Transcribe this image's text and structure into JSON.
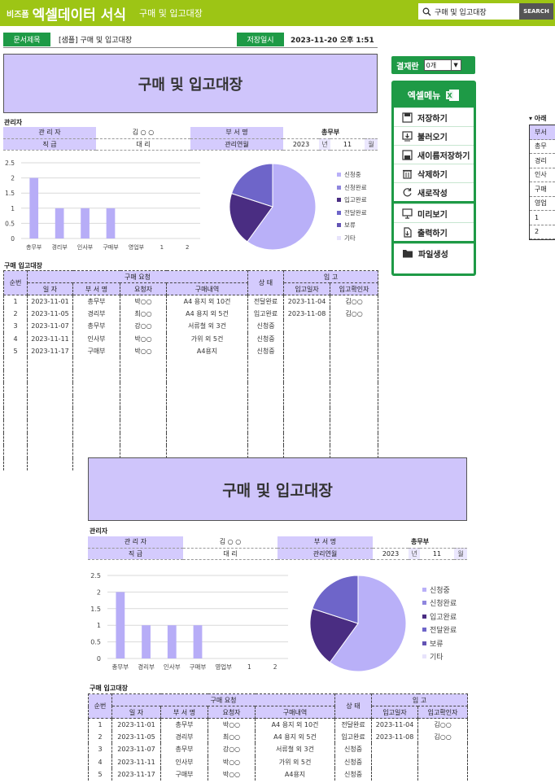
{
  "topbar": {
    "logo_small": "비즈폼",
    "logo_big": "엑셀데이터 서식",
    "subtitle": "구매 및 입고대장",
    "search_value": "구매 및 입고대장",
    "search_button": "SEARCH"
  },
  "docbar": {
    "doc_title_label": "문서제목",
    "doc_title_value": "[샘플] 구매 및 입고대장",
    "saved_label": "저장일시",
    "saved_value": "2023-11-20  오후 1:51"
  },
  "sheet": {
    "title": "구매 및 입고대장",
    "manager_section": "관리자",
    "info": {
      "manager_label": "관 리 자",
      "manager_value": "김 ○ ○",
      "dept_label": "부 서 명",
      "dept_value": "총무부",
      "rank_label": "직     급",
      "rank_value": "대     리",
      "period_label": "관리연월",
      "year": "2023",
      "year_unit": "년",
      "month": "11",
      "month_unit": "월"
    },
    "ledger_section": "구매 입고대장",
    "headers": {
      "no": "순번",
      "request": "구매 요청",
      "date": "일 자",
      "dept": "부 서 명",
      "requester": "요청자",
      "content": "구매내역",
      "status": "상 태",
      "receipt": "입 고",
      "receipt_date": "입고일자",
      "receipt_checker": "입고확인자"
    },
    "rows": [
      {
        "no": "1",
        "date": "2023-11-01",
        "dept": "총무부",
        "requester": "박○○",
        "content": "A4 용지 외 10건",
        "status": "전달완료",
        "rdate": "2023-11-04",
        "rchecker": "김○○"
      },
      {
        "no": "2",
        "date": "2023-11-05",
        "dept": "경리부",
        "requester": "최○○",
        "content": "A4 용지 외 5건",
        "status": "입고완료",
        "rdate": "2023-11-08",
        "rchecker": "김○○"
      },
      {
        "no": "3",
        "date": "2023-11-07",
        "dept": "총무부",
        "requester": "강○○",
        "content": "서류철 외 3건",
        "status": "신청중",
        "rdate": "",
        "rchecker": ""
      },
      {
        "no": "4",
        "date": "2023-11-11",
        "dept": "인사부",
        "requester": "박○○",
        "content": "가위 외 5건",
        "status": "신청중",
        "rdate": "",
        "rchecker": ""
      },
      {
        "no": "5",
        "date": "2023-11-17",
        "dept": "구매부",
        "requester": "박○○",
        "content": "A4용지",
        "status": "신청중",
        "rdate": "",
        "rchecker": ""
      }
    ]
  },
  "chart_data": [
    {
      "type": "bar",
      "categories": [
        "총무부",
        "경리부",
        "인사부",
        "구매부",
        "영업부",
        "1",
        "2"
      ],
      "values": [
        2,
        1,
        1,
        1,
        0,
        0,
        0
      ],
      "ylim": [
        0,
        2.5
      ],
      "yticks": [
        "0",
        "0.5",
        "1",
        "1.5",
        "2",
        "2.5"
      ],
      "color": "#b7adf7",
      "grid": true
    },
    {
      "type": "pie",
      "labels": [
        "신청중",
        "신청완료",
        "입고완료",
        "전달완료",
        "보류",
        "기타"
      ],
      "values": [
        3,
        0,
        1,
        1,
        0,
        0
      ],
      "colors": [
        "#b9b0f8",
        "#8f86de",
        "#4a2d82",
        "#6e65c9",
        "#6354b4",
        "#e7e3fb"
      ]
    }
  ],
  "side": {
    "result_label": "결재란",
    "result_value": "0개",
    "menu_title": "엑셀메뉴",
    "items": [
      "저장하기",
      "불러오기",
      "새이름저장하기",
      "삭제하기",
      "새로작성",
      "미리보기",
      "출력하기",
      "파일생성"
    ]
  },
  "rightclip": {
    "head": "▾ 아래",
    "cells": [
      "부서",
      "총무",
      "경리",
      "인사",
      "구매",
      "영업",
      "1",
      "2"
    ]
  },
  "colors": {
    "accent": "#9dc515",
    "green": "#1e9a46",
    "lavender": "#cfc5fb"
  }
}
